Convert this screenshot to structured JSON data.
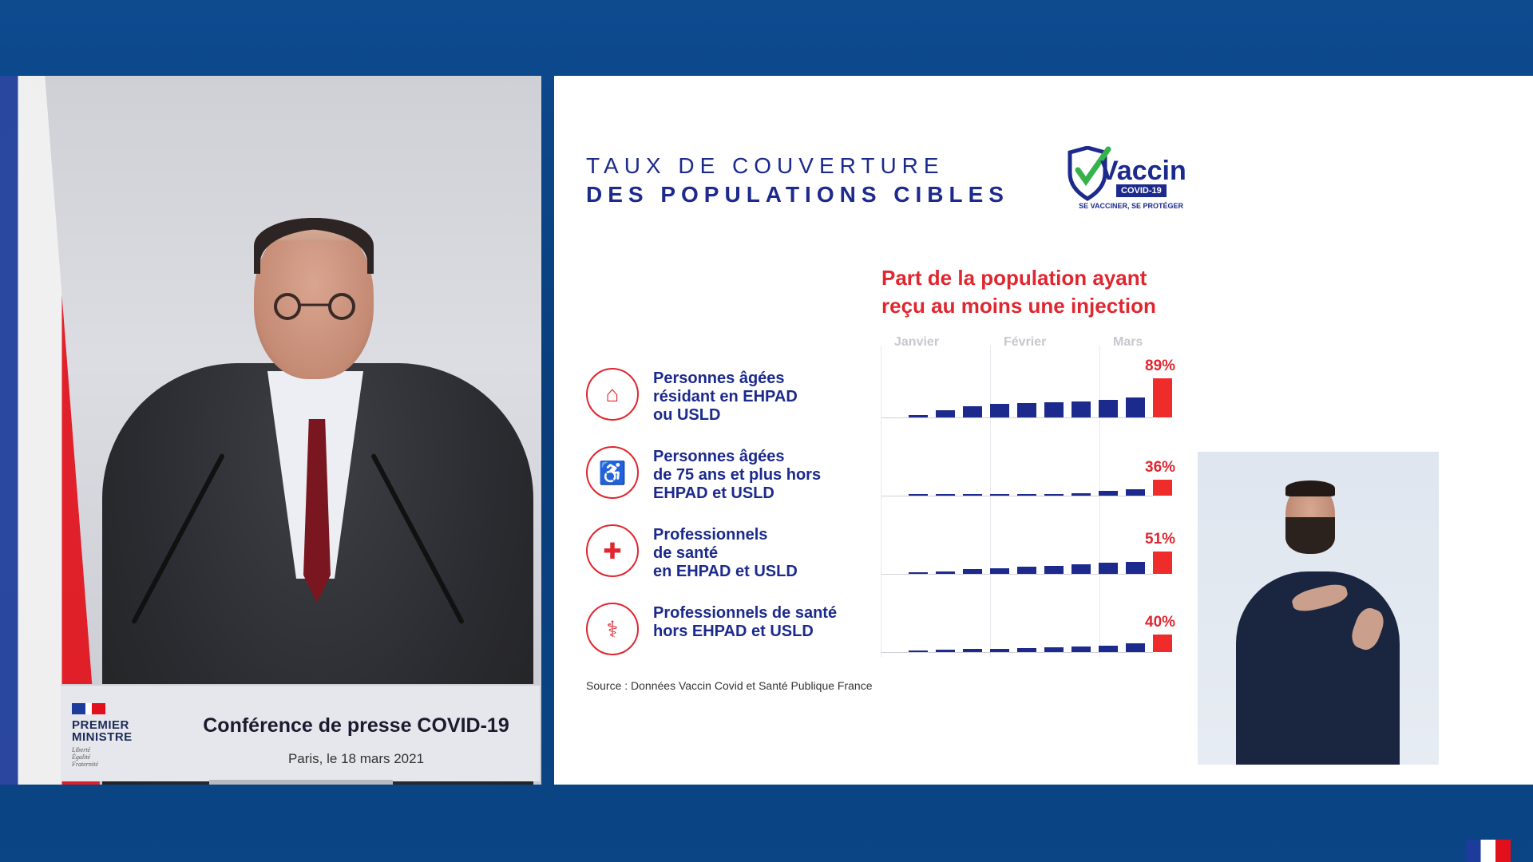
{
  "podium": {
    "logo_title_1": "PREMIER",
    "logo_title_2": "MINISTRE",
    "logo_motto": "Liberté\nÉgalité\nFraternité",
    "title": "Conférence de presse COVID-19",
    "subtitle": "Paris, le 18 mars 2021"
  },
  "slide": {
    "title_line1": "TAUX DE COUVERTURE",
    "title_line2": "DES POPULATIONS CIBLES",
    "logo_word": "Vaccin",
    "logo_badge": "COVID-19",
    "logo_motto": "SE VACCINER, SE PROTÉGER",
    "chart_title_line1": "Part de la population ayant",
    "chart_title_line2": "reçu au moins une injection",
    "months": [
      "Janvier",
      "Février",
      "Mars"
    ],
    "source": "Source : Données Vaccin Covid et Santé Publique France"
  },
  "rows": [
    {
      "label": "Personnes âgées\nrésidant en EHPAD\nou USLD",
      "icon": "care-home-icon",
      "pct": "89%"
    },
    {
      "label": "Personnes âgées\nde 75 ans et plus hors\nEHPAD et USLD",
      "icon": "elderly-person-icon",
      "pct": "36%"
    },
    {
      "label": "Professionnels\nde santé\nen EHPAD et USLD",
      "icon": "nurse-icon",
      "pct": "51%"
    },
    {
      "label": "Professionnels de santé\nhors EHPAD et USLD",
      "icon": "doctor-icon",
      "pct": "40%"
    }
  ],
  "chart_data": {
    "type": "bar",
    "title": "Part de la population ayant reçu au moins une injection",
    "categories_note": [
      "Janvier",
      "Février",
      "Mars"
    ],
    "series": [
      {
        "name": "Personnes âgées résidant en EHPAD ou USLD",
        "values": [
          5,
          17,
          25,
          30,
          33,
          35,
          37,
          40,
          45,
          89
        ]
      },
      {
        "name": "Personnes âgées de 75 ans et plus hors EHPAD et USLD",
        "values": [
          0,
          1,
          2,
          3,
          4,
          4,
          5,
          10,
          15,
          36
        ]
      },
      {
        "name": "Professionnels de santé en EHPAD et USLD",
        "values": [
          1,
          6,
          10,
          13,
          16,
          19,
          22,
          25,
          28,
          51
        ]
      },
      {
        "name": "Professionnels de santé hors EHPAD et USLD",
        "values": [
          4,
          6,
          7,
          7,
          9,
          11,
          13,
          15,
          20,
          40
        ]
      }
    ],
    "ylim": [
      0,
      100
    ]
  },
  "colors": {
    "brand_blue": "#1b2a8c",
    "accent_red": "#e0262f"
  }
}
